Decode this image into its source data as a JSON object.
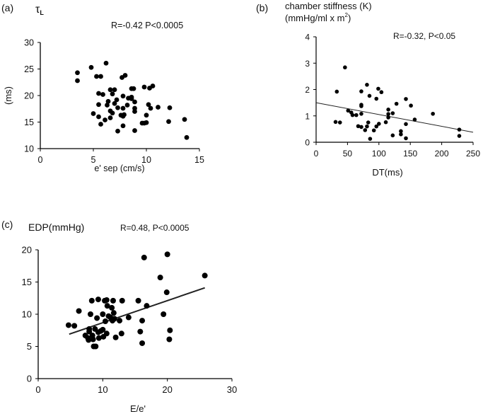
{
  "chart_data": [
    {
      "type": "scatter",
      "panel_label": "(a)",
      "title": "τL",
      "title_main": "τ",
      "title_sub": "L",
      "annotation": "R=-0.42 P<0.0005",
      "xlabel": "e' sep (cm/s)",
      "ylabel": "(ms)",
      "xlim": [
        0,
        15
      ],
      "ylim": [
        10,
        30
      ],
      "xticks": [
        0,
        5,
        10,
        15
      ],
      "yticks": [
        10,
        15,
        20,
        25,
        30
      ],
      "grid": false,
      "regression_line": null,
      "points": [
        [
          3.5,
          24.3
        ],
        [
          3.5,
          22.8
        ],
        [
          4.8,
          25.3
        ],
        [
          6.2,
          26.1
        ],
        [
          5.3,
          23.6
        ],
        [
          5.7,
          23.6
        ],
        [
          7.7,
          23.4
        ],
        [
          8.0,
          23.8
        ],
        [
          5.5,
          20.4
        ],
        [
          5.9,
          20.2
        ],
        [
          6.6,
          21.1
        ],
        [
          7.0,
          21.1
        ],
        [
          6.8,
          20.3
        ],
        [
          7.8,
          19.9
        ],
        [
          8.3,
          19.5
        ],
        [
          8.6,
          19.4
        ],
        [
          8.6,
          19.7
        ],
        [
          8.6,
          21.3
        ],
        [
          8.8,
          21.3
        ],
        [
          9.8,
          21.6
        ],
        [
          10.3,
          21.4
        ],
        [
          10.6,
          21.8
        ],
        [
          6.4,
          18.9
        ],
        [
          6.3,
          18.2
        ],
        [
          5.5,
          18.3
        ],
        [
          7.2,
          19.2
        ],
        [
          7.0,
          18.5
        ],
        [
          8.2,
          18.2
        ],
        [
          8.9,
          18.8
        ],
        [
          7.3,
          17.7
        ],
        [
          7.8,
          17.6
        ],
        [
          8.9,
          17.6
        ],
        [
          8.9,
          17.0
        ],
        [
          10.2,
          18.3
        ],
        [
          10.4,
          17.6
        ],
        [
          11.1,
          17.8
        ],
        [
          12.2,
          17.7
        ],
        [
          5.0,
          16.6
        ],
        [
          6.6,
          17.1
        ],
        [
          6.8,
          16.7
        ],
        [
          7.6,
          16.3
        ],
        [
          7.8,
          16.1
        ],
        [
          7.9,
          16.4
        ],
        [
          10.0,
          16.3
        ],
        [
          5.5,
          16.0
        ],
        [
          6.1,
          15.4
        ],
        [
          6.6,
          15.8
        ],
        [
          5.7,
          14.6
        ],
        [
          7.8,
          14.3
        ],
        [
          9.6,
          14.8
        ],
        [
          9.8,
          14.8
        ],
        [
          10.0,
          14.9
        ],
        [
          12.1,
          15.1
        ],
        [
          13.6,
          15.5
        ],
        [
          7.3,
          13.3
        ],
        [
          8.9,
          13.4
        ],
        [
          13.8,
          12.1
        ]
      ]
    },
    {
      "type": "scatter",
      "panel_label": "(b)",
      "title": "chamber stiffness (K)",
      "title_line2": "(mmHg/ml x m",
      "title_line2_sup": "2",
      "title_line2_end": ")",
      "annotation": "R=-0.32, P<0.05",
      "xlabel": "DT(ms)",
      "ylabel": "",
      "xlim": [
        0,
        250
      ],
      "ylim": [
        0,
        4
      ],
      "xticks": [
        0,
        50,
        100,
        150,
        200,
        250
      ],
      "yticks": [
        0,
        1,
        2,
        3,
        4
      ],
      "grid": false,
      "regression_line": {
        "x": [
          0,
          250
        ],
        "y": [
          1.5,
          0.38
        ]
      },
      "points": [
        [
          31,
          0.77
        ],
        [
          33,
          1.92
        ],
        [
          38,
          0.75
        ],
        [
          46,
          2.84
        ],
        [
          51,
          1.2
        ],
        [
          56,
          1.13
        ],
        [
          58,
          1.03
        ],
        [
          64,
          1.03
        ],
        [
          67,
          0.61
        ],
        [
          72,
          0.58
        ],
        [
          72,
          1.42
        ],
        [
          72,
          1.37
        ],
        [
          72,
          1.08
        ],
        [
          72,
          1.93
        ],
        [
          78,
          0.46
        ],
        [
          81,
          2.18
        ],
        [
          81,
          0.6
        ],
        [
          83,
          0.75
        ],
        [
          85,
          1.76
        ],
        [
          86,
          0.13
        ],
        [
          92,
          0.45
        ],
        [
          96,
          1.65
        ],
        [
          96,
          0.6
        ],
        [
          99,
          2.03
        ],
        [
          100,
          0.7
        ],
        [
          104,
          1.9
        ],
        [
          111,
          0.76
        ],
        [
          115,
          1.24
        ],
        [
          115,
          1.07
        ],
        [
          115,
          0.94
        ],
        [
          122,
          1.1
        ],
        [
          122,
          0.26
        ],
        [
          128,
          1.46
        ],
        [
          135,
          0.42
        ],
        [
          135,
          0.3
        ],
        [
          143,
          1.64
        ],
        [
          143,
          0.69
        ],
        [
          143,
          0.15
        ],
        [
          151,
          1.39
        ],
        [
          157,
          0.86
        ],
        [
          186,
          1.08
        ],
        [
          228,
          0.48
        ],
        [
          228,
          0.24
        ]
      ]
    },
    {
      "type": "scatter",
      "panel_label": "(c)",
      "title": "EDP(mmHg)",
      "annotation": "R=0.48, P<0.0005",
      "xlabel": "E/e'",
      "ylabel": "",
      "xlim": [
        0,
        30
      ],
      "ylim": [
        0,
        20
      ],
      "xticks": [
        0,
        10,
        20,
        30
      ],
      "yticks": [
        0,
        5,
        10,
        15,
        20
      ],
      "grid": false,
      "regression_line": {
        "x": [
          4.8,
          25.8
        ],
        "y": [
          6.9,
          14.1
        ]
      },
      "points": [
        [
          4.7,
          8.3
        ],
        [
          5.6,
          8.2
        ],
        [
          6.3,
          10.5
        ],
        [
          7.3,
          6.7
        ],
        [
          7.7,
          6.3
        ],
        [
          7.9,
          7.7
        ],
        [
          7.9,
          7.3
        ],
        [
          7.8,
          6.0
        ],
        [
          8.1,
          10.0
        ],
        [
          8.3,
          12.1
        ],
        [
          8.4,
          6.7
        ],
        [
          8.5,
          6.1
        ],
        [
          8.6,
          5.0
        ],
        [
          8.9,
          5.0
        ],
        [
          8.8,
          7.7
        ],
        [
          9.1,
          9.4
        ],
        [
          9.3,
          12.3
        ],
        [
          9.3,
          7.2
        ],
        [
          9.4,
          6.3
        ],
        [
          9.7,
          7.4
        ],
        [
          10.0,
          10.0
        ],
        [
          10.0,
          7.6
        ],
        [
          10.1,
          6.5
        ],
        [
          10.4,
          8.9
        ],
        [
          10.3,
          12.1
        ],
        [
          10.6,
          12.2
        ],
        [
          10.6,
          7.0
        ],
        [
          10.7,
          11.3
        ],
        [
          10.9,
          9.7
        ],
        [
          11.2,
          9.5
        ],
        [
          11.4,
          11.0
        ],
        [
          11.5,
          9.0
        ],
        [
          11.6,
          12.1
        ],
        [
          11.7,
          10.2
        ],
        [
          11.8,
          9.3
        ],
        [
          12.0,
          6.4
        ],
        [
          12.6,
          9.0
        ],
        [
          13.0,
          12.1
        ],
        [
          12.9,
          7.0
        ],
        [
          14.0,
          9.5
        ],
        [
          15.5,
          12.1
        ],
        [
          15.8,
          7.3
        ],
        [
          16.1,
          9.0
        ],
        [
          16.1,
          5.5
        ],
        [
          16.4,
          18.8
        ],
        [
          16.8,
          11.3
        ],
        [
          18.9,
          15.7
        ],
        [
          19.4,
          10.0
        ],
        [
          19.9,
          13.4
        ],
        [
          20.0,
          19.3
        ],
        [
          20.3,
          6.1
        ],
        [
          20.4,
          7.5
        ],
        [
          25.8,
          16.0
        ]
      ]
    }
  ]
}
